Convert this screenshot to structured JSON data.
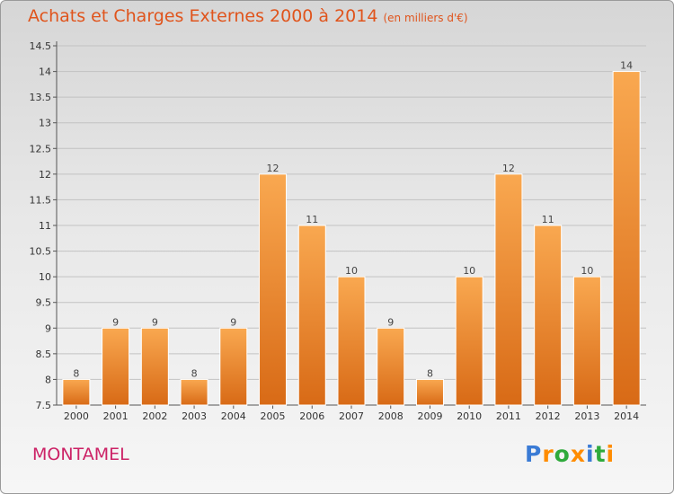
{
  "title": "Achats et Charges Externes 2000 à 2014",
  "subtitle": "(en milliers d'€)",
  "town": "MONTAMEL",
  "logo": {
    "text": "Proxiti",
    "colors": [
      "#3a7bd5",
      "#ff8c00",
      "#2faa3c",
      "#ff8c00",
      "#3a7bd5",
      "#2faa3c",
      "#ff8c00"
    ]
  },
  "chart_data": {
    "type": "bar",
    "title": "Achats et Charges Externes 2000 à 2014",
    "subtitle": "(en milliers d'€)",
    "xlabel": "",
    "ylabel": "",
    "categories": [
      "2000",
      "2001",
      "2002",
      "2003",
      "2004",
      "2005",
      "2006",
      "2007",
      "2008",
      "2009",
      "2010",
      "2011",
      "2012",
      "2013",
      "2014"
    ],
    "values": [
      8,
      9,
      9,
      8,
      9,
      12,
      11,
      10,
      9,
      8,
      10,
      12,
      11,
      10,
      14
    ],
    "value_labels": [
      "8",
      "9",
      "9",
      "8",
      "9",
      "12",
      "11",
      "10",
      "9",
      "8",
      "10",
      "12",
      "11",
      "10",
      "14"
    ],
    "ylim": [
      7.5,
      14.5
    ],
    "yticks": [
      7.5,
      8,
      8.5,
      9,
      9.5,
      10,
      10.5,
      11,
      11.5,
      12,
      12.5,
      13,
      13.5,
      14,
      14.5
    ],
    "ytick_labels": [
      "7.5",
      "8",
      "8.5",
      "9",
      "9.5",
      "10",
      "10.5",
      "11",
      "11.5",
      "12",
      "12.5",
      "13",
      "13.5",
      "14",
      "14.5"
    ],
    "grid": true,
    "bar_color_light": "#f9a850",
    "bar_color_dark": "#d86a16"
  }
}
